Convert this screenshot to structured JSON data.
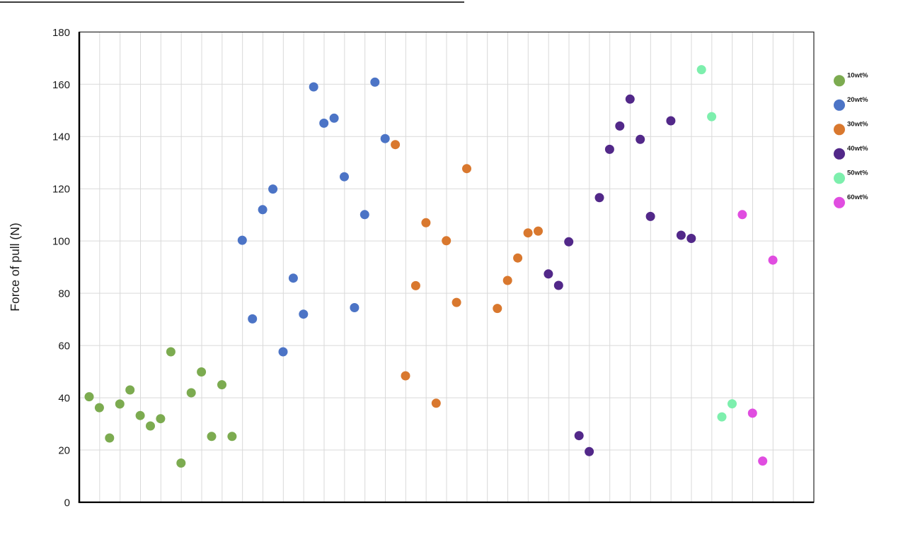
{
  "figure": {
    "background": "#ffffff",
    "frame_color": "#262626",
    "grid_color": "#d9d9d9",
    "text_color": "#1a1a1a",
    "top_edge_line": true
  },
  "chart_data": {
    "type": "scatter",
    "title": "",
    "xlabel": "",
    "ylabel": "Force of pull (N)",
    "ylim": [
      0,
      180
    ],
    "yticks": [
      0,
      20,
      40,
      60,
      80,
      100,
      120,
      140,
      160,
      180
    ],
    "x_axis": "unlabeled sample index (no tick labels shown)",
    "grid": {
      "vertical": true,
      "horizontal": true,
      "vertical_columns": 36
    },
    "legend_position": "right",
    "series": [
      {
        "name": "10wt%",
        "color": "#7CAB50",
        "x": [
          0,
          1,
          2,
          3,
          4,
          5,
          6,
          7,
          8,
          9,
          10,
          11,
          12,
          13,
          14
        ],
        "y": [
          40.4,
          36.2,
          24.6,
          37.6,
          43.0,
          33.2,
          29.2,
          32.0,
          57.6,
          15.0,
          41.9,
          49.9,
          25.2,
          45.0,
          25.2
        ]
      },
      {
        "name": "20wt%",
        "color": "#4C74C6",
        "x": [
          15,
          16,
          17,
          18,
          19,
          20,
          21,
          22,
          23,
          24,
          25,
          26,
          27,
          28,
          29
        ],
        "y": [
          100.3,
          70.2,
          112.0,
          119.9,
          57.6,
          85.8,
          72.0,
          159.0,
          145.1,
          147.0,
          124.6,
          74.5,
          110.1,
          160.8,
          139.2
        ]
      },
      {
        "name": "30wt%",
        "color": "#D9782E",
        "x": [
          30,
          31,
          32,
          33,
          34,
          35,
          36,
          37,
          40,
          41,
          42,
          43,
          44
        ],
        "y": [
          136.9,
          48.4,
          82.9,
          107.0,
          37.9,
          100.1,
          76.5,
          127.7,
          74.2,
          84.9,
          93.5,
          103.1,
          103.8
        ]
      },
      {
        "name": "40wt%",
        "color": "#522889",
        "x": [
          45,
          46,
          47,
          48,
          49,
          50,
          51,
          52,
          53,
          54,
          55,
          57,
          58,
          59
        ],
        "y": [
          87.4,
          83.0,
          99.7,
          25.5,
          19.4,
          116.6,
          135.1,
          144.0,
          154.3,
          138.9,
          109.4,
          146.0,
          102.2,
          101.0
        ]
      },
      {
        "name": "50wt%",
        "color": "#7DEFAD",
        "x": [
          60,
          61,
          62,
          63
        ],
        "y": [
          165.6,
          147.6,
          32.7,
          37.7
        ]
      },
      {
        "name": "60wt%",
        "color": "#E04DE0",
        "x": [
          64,
          65,
          66,
          67
        ],
        "y": [
          110.1,
          34.1,
          15.8,
          92.7
        ]
      }
    ]
  }
}
